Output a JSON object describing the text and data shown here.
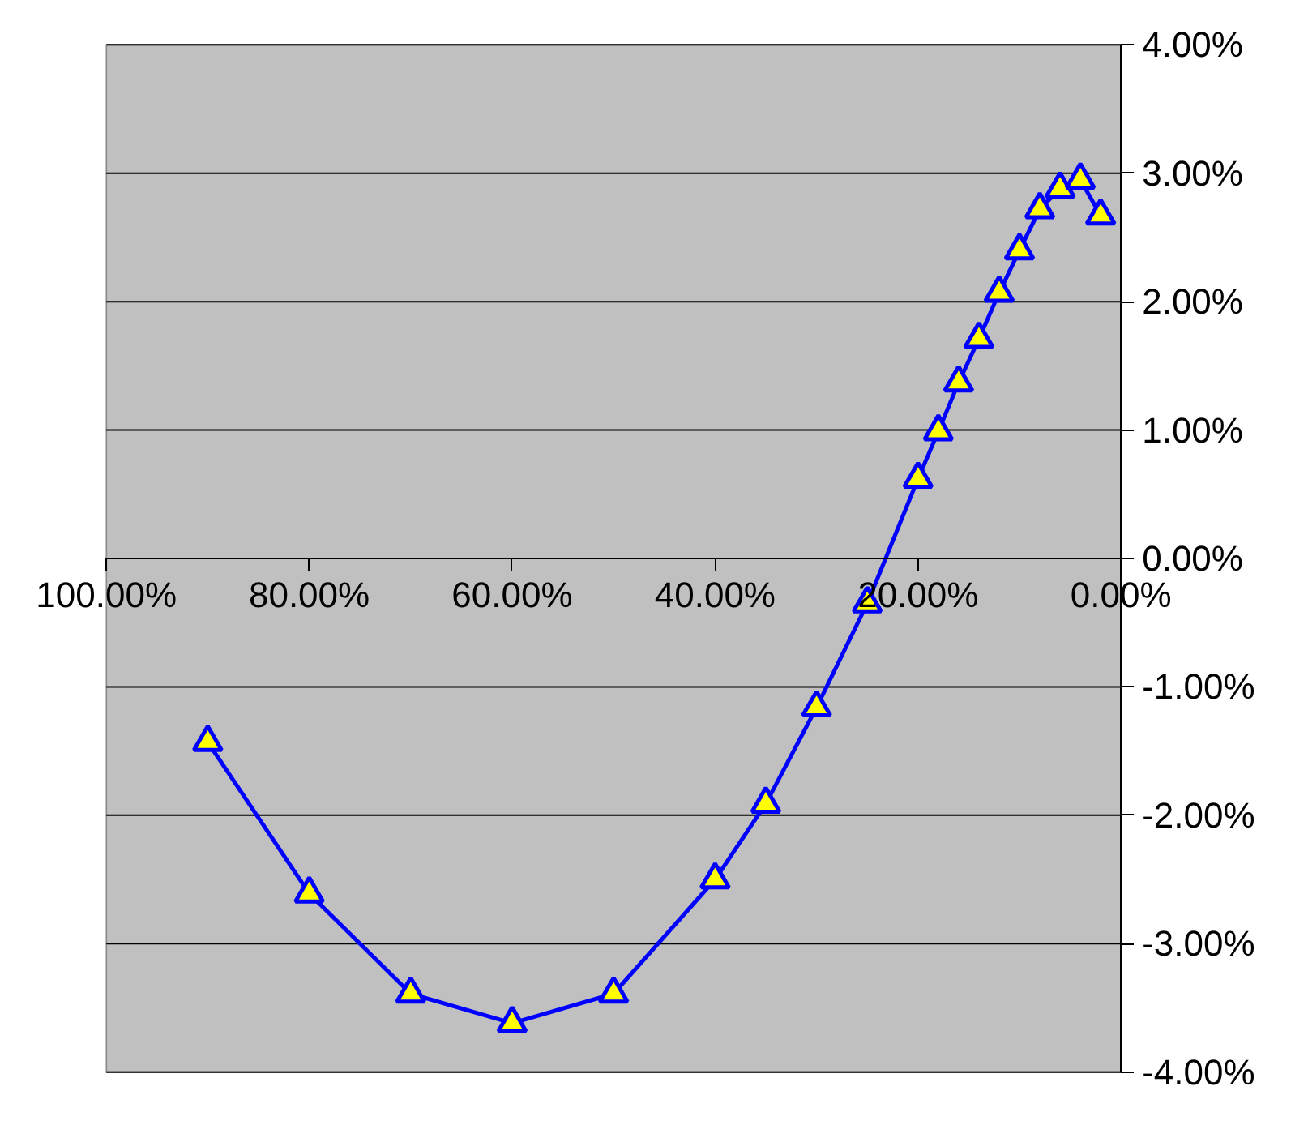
{
  "chart_data": {
    "type": "line",
    "x": [
      90,
      80,
      70,
      60,
      50,
      40,
      35,
      30,
      25,
      20,
      18,
      16,
      14,
      12,
      10,
      8,
      6,
      4,
      2
    ],
    "series": [
      {
        "color": "#0000ff",
        "values": [
          -1.43,
          -2.61,
          -3.39,
          -3.62,
          -3.39,
          -2.5,
          -1.91,
          -1.16,
          -0.35,
          0.62,
          0.99,
          1.37,
          1.71,
          2.07,
          2.4,
          2.72,
          2.88,
          2.95,
          2.67
        ]
      }
    ],
    "xlim": [
      100,
      0
    ],
    "xticks": [
      {
        "value": 100,
        "label": "100.00%"
      },
      {
        "value": 80,
        "label": "80.00%"
      },
      {
        "value": 60,
        "label": "60.00%"
      },
      {
        "value": 40,
        "label": "40.00%"
      },
      {
        "value": 20,
        "label": "20.00%"
      },
      {
        "value": 0,
        "label": "0.00%"
      }
    ],
    "ylim": [
      -4,
      4
    ],
    "yticks": [
      {
        "value": 4,
        "label": "4.00%"
      },
      {
        "value": 3,
        "label": "3.00%"
      },
      {
        "value": 2,
        "label": "2.00%"
      },
      {
        "value": 1,
        "label": "1.00%"
      },
      {
        "value": 0,
        "label": "0.00%"
      },
      {
        "value": -1,
        "label": "-1.00%"
      },
      {
        "value": -2,
        "label": "-2.00%"
      },
      {
        "value": -3,
        "label": "-3.00%"
      },
      {
        "value": -4,
        "label": "-4.00%"
      }
    ],
    "grid": "y",
    "marker": "triangle",
    "line_style": "solid"
  }
}
